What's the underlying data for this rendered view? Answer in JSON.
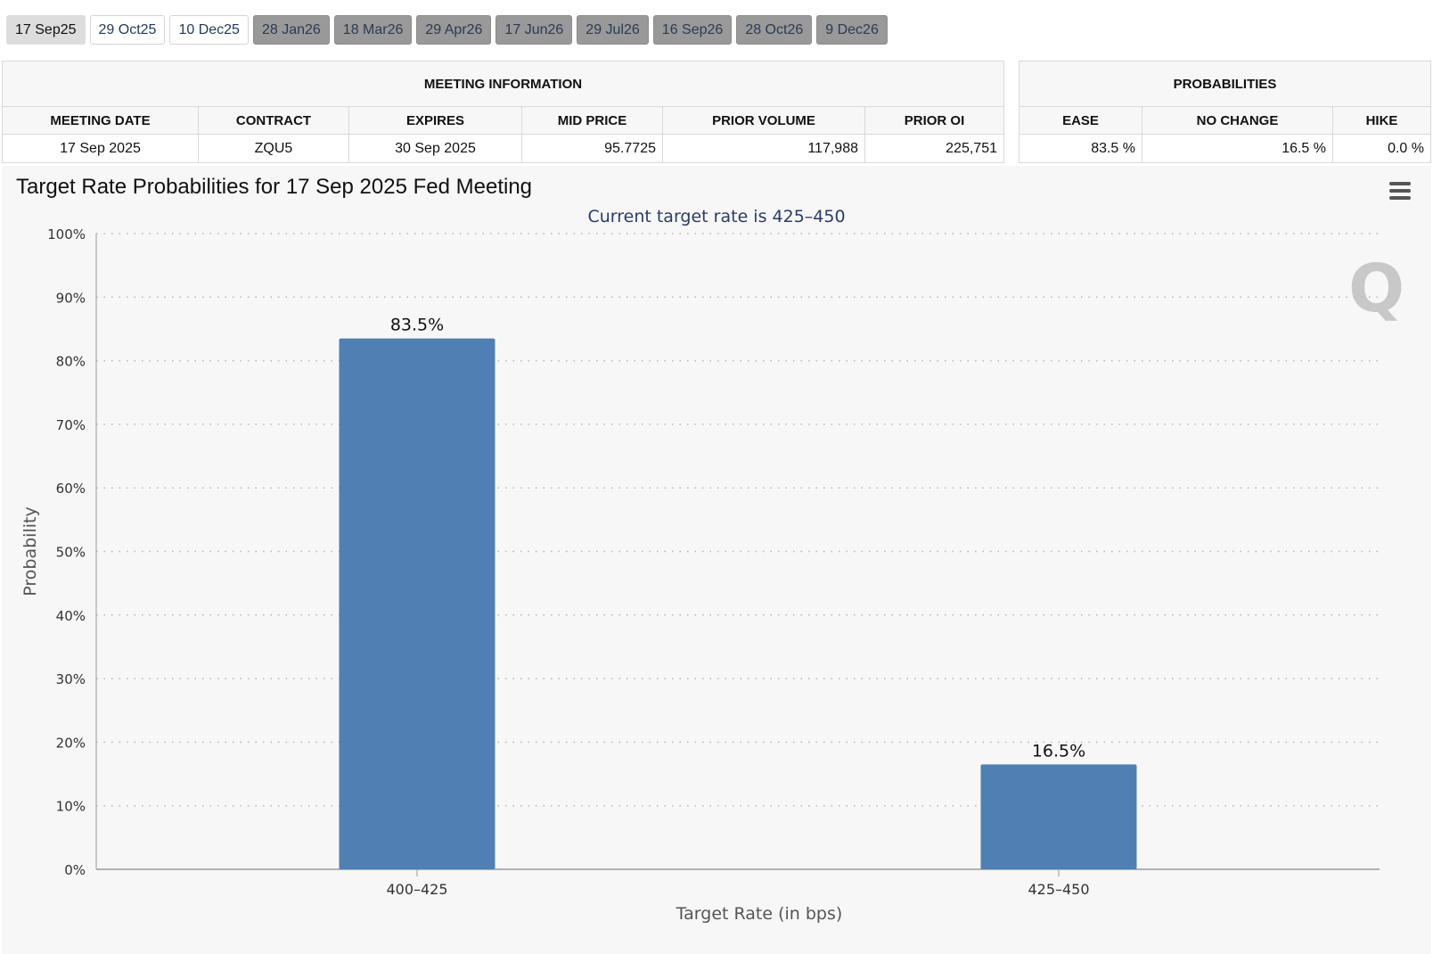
{
  "tabs": [
    {
      "label": "17 Sep25",
      "state": "active"
    },
    {
      "label": "29 Oct25",
      "state": "normal"
    },
    {
      "label": "10 Dec25",
      "state": "normal"
    },
    {
      "label": "28 Jan26",
      "state": "disabled"
    },
    {
      "label": "18 Mar26",
      "state": "disabled"
    },
    {
      "label": "29 Apr26",
      "state": "disabled"
    },
    {
      "label": "17 Jun26",
      "state": "disabled"
    },
    {
      "label": "29 Jul26",
      "state": "disabled"
    },
    {
      "label": "16 Sep26",
      "state": "disabled"
    },
    {
      "label": "28 Oct26",
      "state": "disabled"
    },
    {
      "label": "9 Dec26",
      "state": "disabled"
    }
  ],
  "meeting_info": {
    "header": "MEETING INFORMATION",
    "columns": [
      "MEETING DATE",
      "CONTRACT",
      "EXPIRES",
      "MID PRICE",
      "PRIOR VOLUME",
      "PRIOR OI"
    ],
    "values": [
      "17 Sep 2025",
      "ZQU5",
      "30 Sep 2025",
      "95.7725",
      "117,988",
      "225,751"
    ]
  },
  "probabilities": {
    "header": "PROBABILITIES",
    "columns": [
      "EASE",
      "NO CHANGE",
      "HIKE"
    ],
    "values": [
      "83.5 %",
      "16.5 %",
      "0.0 %"
    ]
  },
  "watermark": "Q",
  "chart_data": {
    "type": "bar",
    "title": "Target Rate Probabilities for 17 Sep 2025 Fed Meeting",
    "subtitle": "Current target rate is 425–450",
    "categories": [
      "400–425",
      "425–450"
    ],
    "values": [
      83.5,
      16.5
    ],
    "data_labels": [
      "83.5%",
      "16.5%"
    ],
    "xlabel": "Target Rate (in bps)",
    "ylabel": "Probability",
    "ylim": [
      0,
      100
    ],
    "yticks": [
      "0%",
      "10%",
      "20%",
      "30%",
      "40%",
      "50%",
      "60%",
      "70%",
      "80%",
      "90%",
      "100%"
    ],
    "grid": true,
    "bar_color": "#4f7fb3"
  }
}
